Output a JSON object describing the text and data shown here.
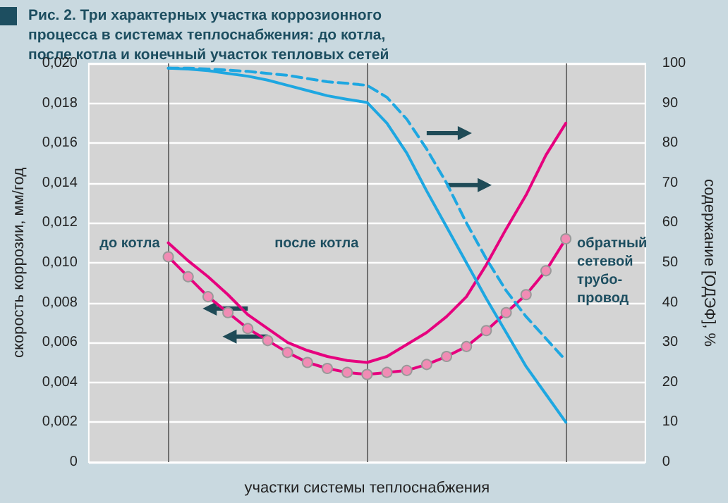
{
  "chart_data": {
    "type": "line",
    "title": "Рис. 2. Три характерных участка коррозионного процесса в системах теплоснабжения: до котла, после котла и конечный участок тепловых сетей",
    "xlabel": "участки системы теплоснабжения",
    "ylabel": "скорость коррозии, мм/год",
    "y2label": "содержание [ОДЭФ], %",
    "categories": [
      null,
      null,
      null,
      null,
      null,
      null,
      null,
      null,
      null,
      null,
      null,
      null,
      null,
      null,
      null,
      null,
      null,
      null,
      null,
      null,
      null,
      null,
      null,
      null,
      null,
      null,
      null,
      null,
      null
    ],
    "ylim": [
      0,
      0.02
    ],
    "yticks": [
      {
        "value": 0,
        "label": "0"
      },
      {
        "value": 0.002,
        "label": "0,002"
      },
      {
        "value": 0.004,
        "label": "0,004"
      },
      {
        "value": 0.006,
        "label": "0,006"
      },
      {
        "value": 0.008,
        "label": "0,008"
      },
      {
        "value": 0.01,
        "label": "0,010"
      },
      {
        "value": 0.012,
        "label": "0,012"
      },
      {
        "value": 0.014,
        "label": "0,014"
      },
      {
        "value": 0.016,
        "label": "0,016"
      },
      {
        "value": 0.018,
        "label": "0,018"
      },
      {
        "value": 0.02,
        "label": "0,020"
      }
    ],
    "y2lim": [
      0,
      100
    ],
    "y2ticks": [
      0,
      10,
      20,
      30,
      40,
      50,
      60,
      70,
      80,
      90,
      100
    ],
    "tick_labels": "y",
    "grid": true,
    "annotations": [
      "до котла",
      "после котла",
      "обратный\nсетевой\nтрубо-\nпровод"
    ],
    "series": [
      {
        "color": "#e6007e",
        "marker": "none",
        "line_style": "solid",
        "values": [
          null,
          null,
          null,
          null,
          0.011,
          0.0101,
          0.0093,
          0.0084,
          0.0074,
          0.0067,
          0.006,
          0.0056,
          0.0053,
          0.0051,
          0.005,
          0.0053,
          0.0059,
          0.0065,
          0.0073,
          0.0083,
          0.0099,
          0.0117,
          0.0134,
          0.0154,
          0.017,
          null,
          null,
          null,
          null
        ]
      },
      {
        "color": "#e6007e",
        "marker": "circle",
        "line_style": "solid",
        "values": [
          null,
          null,
          null,
          null,
          0.0103,
          0.0093,
          0.0083,
          0.0075,
          0.0067,
          0.0061,
          0.0055,
          0.005,
          0.0047,
          0.0045,
          0.0044,
          0.0045,
          0.0046,
          0.0049,
          0.0053,
          0.0058,
          0.0066,
          0.0075,
          0.0084,
          0.0096,
          0.0112,
          null,
          null,
          null,
          null
        ]
      },
      {
        "color": "#1ea7e1",
        "marker": "none",
        "line_style": "solid",
        "axis": "y2",
        "values": [
          null,
          null,
          null,
          null,
          98.8,
          98.6,
          98.2,
          97.5,
          96.8,
          95.8,
          94.5,
          93.2,
          91.9,
          91,
          90.2,
          85,
          77.5,
          68,
          59,
          50,
          41,
          32.5,
          24,
          17,
          10,
          null,
          null,
          null,
          null
        ]
      },
      {
        "color": "#1ea7e1",
        "marker": "none",
        "line_style": "dashed",
        "axis": "y2",
        "values": [
          null,
          null,
          null,
          null,
          98.8,
          98.8,
          98.6,
          98.3,
          98,
          97.5,
          97,
          96.2,
          95.4,
          95,
          94.5,
          91.5,
          86,
          78.5,
          70,
          60,
          51,
          43,
          36.5,
          31,
          25.5,
          null,
          null,
          null,
          null
        ]
      }
    ]
  }
}
